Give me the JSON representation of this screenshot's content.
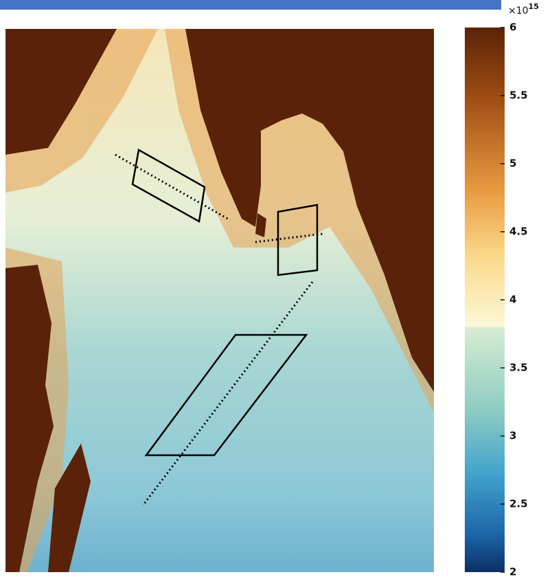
{
  "colorbar": {
    "exponent_base": "×10",
    "exponent": "15",
    "range": [
      2,
      6
    ],
    "ticks": [
      2,
      2.5,
      3,
      3.5,
      4,
      4.5,
      5,
      5.5,
      6
    ]
  }
}
